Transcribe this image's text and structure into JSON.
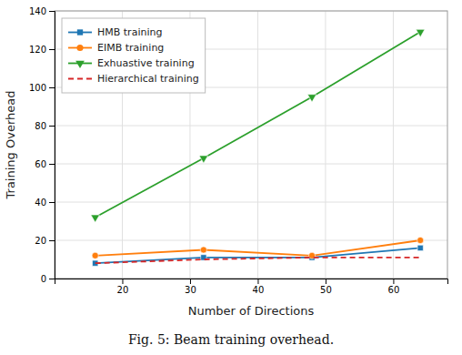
{
  "chart_data": {
    "type": "line",
    "x": [
      16,
      32,
      48,
      64
    ],
    "series": [
      {
        "name": "HMB training",
        "values": [
          8,
          11,
          11,
          16
        ],
        "marker": "square",
        "line_style": "solid"
      },
      {
        "name": "EIMB training",
        "values": [
          12,
          15,
          12,
          20
        ],
        "marker": "circle",
        "line_style": "solid"
      },
      {
        "name": "Exhuastive training",
        "values": [
          32,
          63,
          95,
          129
        ],
        "marker": "triangle_down",
        "line_style": "solid"
      },
      {
        "name": "Hierarchical training",
        "values": [
          8,
          10,
          11,
          11
        ],
        "line_style": "dashed"
      }
    ],
    "x_label": "Number of Directions",
    "y_label": "Training Overhead",
    "caption": "Fig. 5: Beam training overhead.",
    "xlim": [
      10,
      68
    ],
    "ylim": [
      0,
      140
    ],
    "xticks": [
      20,
      30,
      40,
      50,
      60
    ],
    "yticks": [
      0,
      20,
      40,
      60,
      80,
      100,
      120,
      140
    ],
    "grid": true,
    "legend": "upper left"
  }
}
